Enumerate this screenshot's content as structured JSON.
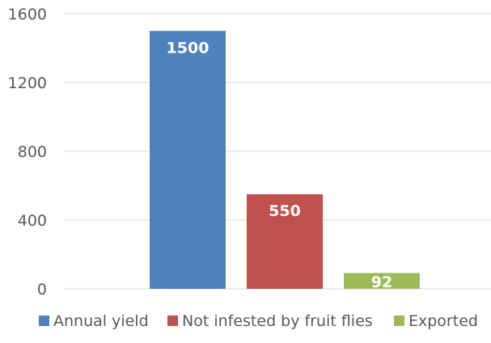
{
  "chart_data": {
    "type": "bar",
    "title": "",
    "xlabel": "",
    "ylabel": "",
    "ylim": [
      0,
      1600
    ],
    "yticks": [
      0,
      400,
      800,
      1200,
      1600
    ],
    "ytick_labels": [
      "0",
      "400",
      "800",
      "1200",
      "1600"
    ],
    "grid": true,
    "legend_position": "bottom",
    "series": [
      {
        "name": "Annual yield",
        "value": 1500,
        "label": "1500",
        "color": "#4F81BD"
      },
      {
        "name": "Not infested by fruit flies",
        "value": 550,
        "label": "550",
        "color": "#C0504D"
      },
      {
        "name": "Exported",
        "value": 92,
        "label": "92",
        "color": "#9BBB59"
      }
    ]
  }
}
